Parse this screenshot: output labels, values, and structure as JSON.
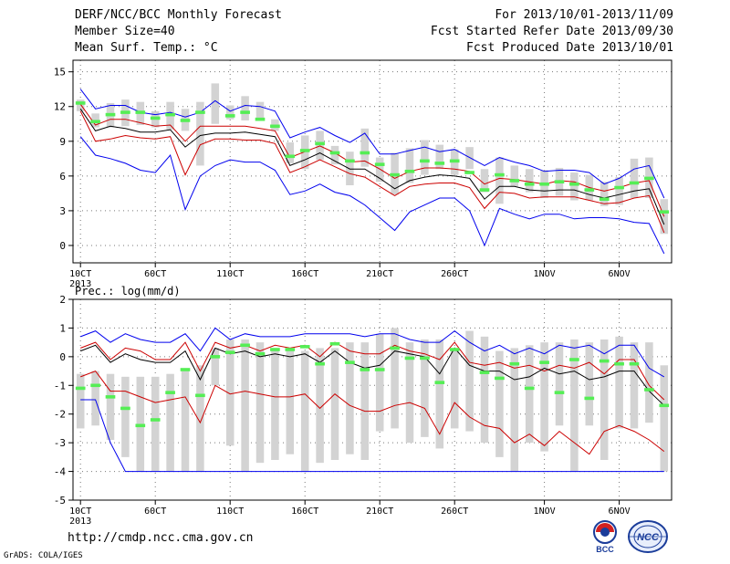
{
  "header": {
    "title": "DERF/NCC/BCC Monthly Forecast",
    "member_size": "Member Size=40",
    "variable": "Mean Surf. Temp.: °C",
    "period": "For 2013/10/01-2013/11/09",
    "fcst_started": "Fcst Started Refer Date 2013/09/30",
    "fcst_produced": "Fcst Produced Date 2013/10/01"
  },
  "footer": {
    "url": "http://cmdp.ncc.cma.gov.cn",
    "credit": "GrADS: COLA/IGES",
    "logo_bcc": "BCC",
    "logo_ncc": "NCC"
  },
  "colors": {
    "envelope_outer": "#0000ee",
    "envelope_inner": "#cc0000",
    "mean": "#000000",
    "box": "#d3d3d3",
    "observed": "#55ee55"
  },
  "chart_data": [
    {
      "type": "line",
      "title": "",
      "ylabel": "",
      "ylim": [
        -1.5,
        16
      ],
      "yticks": [
        0,
        3,
        6,
        9,
        12,
        15
      ],
      "xlim": [
        0.5,
        40.5
      ],
      "xticks": [
        {
          "day": 1,
          "label": "10CT"
        },
        {
          "day": 6,
          "label": "60CT"
        },
        {
          "day": 11,
          "label": "110CT"
        },
        {
          "day": 16,
          "label": "160CT"
        },
        {
          "day": 21,
          "label": "210CT"
        },
        {
          "day": 26,
          "label": "260CT"
        },
        {
          "day": 32,
          "label": "1NOV"
        },
        {
          "day": 37,
          "label": "6NOV"
        }
      ],
      "year_label": "2013",
      "box_low": [
        11.6,
        10.2,
        10.2,
        10.3,
        10.4,
        10.2,
        10.0,
        9.9,
        6.9,
        10.5,
        10.9,
        10.8,
        10.9,
        9.9,
        7.1,
        6.6,
        7.4,
        7.0,
        5.2,
        6.8,
        5.5,
        4.4,
        5.4,
        6.1,
        6.6,
        6.1,
        6.6,
        4.6,
        3.6,
        5.1,
        4.6,
        4.1,
        4.3,
        3.9,
        3.9,
        3.4,
        3.5,
        4.1,
        4.1,
        1.0
      ],
      "box_high": [
        12.6,
        11.4,
        12.3,
        12.6,
        12.4,
        11.6,
        12.4,
        11.8,
        12.4,
        14.0,
        12.1,
        12.9,
        12.4,
        10.9,
        8.9,
        9.5,
        9.9,
        8.6,
        8.1,
        10.1,
        7.6,
        8.0,
        8.4,
        9.1,
        8.7,
        8.3,
        8.5,
        6.6,
        7.6,
        6.9,
        6.6,
        6.5,
        6.7,
        6.3,
        6.1,
        5.5,
        5.9,
        7.5,
        7.6,
        4.0
      ],
      "observed": [
        12.3,
        10.7,
        11.3,
        11.5,
        11.5,
        11.0,
        11.3,
        10.8,
        11.5,
        null,
        11.2,
        11.5,
        10.9,
        10.3,
        7.7,
        8.2,
        8.8,
        8.0,
        7.3,
        8.0,
        7.0,
        6.1,
        6.4,
        7.3,
        7.1,
        7.3,
        6.3,
        4.8,
        6.1,
        5.6,
        5.3,
        5.3,
        5.5,
        5.3,
        4.8,
        4.0,
        5.0,
        5.4,
        5.8,
        2.9
      ],
      "series": [
        {
          "role": "max",
          "color": "#0000ee",
          "values": [
            13.5,
            11.8,
            12.1,
            12.1,
            11.5,
            11.3,
            11.5,
            11.1,
            11.5,
            12.5,
            11.6,
            12.1,
            12.0,
            11.6,
            9.3,
            9.8,
            10.2,
            9.5,
            8.9,
            9.7,
            7.9,
            7.9,
            8.2,
            8.5,
            8.1,
            8.3,
            7.6,
            6.9,
            7.6,
            7.2,
            6.9,
            6.4,
            6.5,
            6.5,
            6.3,
            5.3,
            5.8,
            6.6,
            6.9,
            4.1
          ]
        },
        {
          "role": "upper",
          "color": "#cc0000",
          "values": [
            12.2,
            10.4,
            10.9,
            10.9,
            10.6,
            10.3,
            10.4,
            9.0,
            10.3,
            10.3,
            10.3,
            10.3,
            10.1,
            9.9,
            7.6,
            8.1,
            8.6,
            8.0,
            7.2,
            7.3,
            6.6,
            5.8,
            6.4,
            6.7,
            6.7,
            6.6,
            6.4,
            5.3,
            5.8,
            5.7,
            5.5,
            5.3,
            5.6,
            5.5,
            5.0,
            4.7,
            5.0,
            5.4,
            5.6,
            2.5
          ]
        },
        {
          "role": "mean",
          "color": "#000000",
          "values": [
            11.8,
            9.9,
            10.3,
            10.1,
            9.8,
            9.8,
            10.0,
            8.5,
            9.5,
            9.7,
            9.7,
            9.8,
            9.6,
            9.4,
            6.9,
            7.4,
            8.0,
            7.3,
            6.6,
            6.6,
            5.8,
            4.9,
            5.6,
            5.9,
            6.1,
            6.0,
            5.8,
            4.0,
            5.1,
            5.1,
            4.8,
            4.7,
            4.8,
            4.8,
            4.4,
            4.1,
            4.4,
            4.7,
            4.9,
            1.8
          ]
        },
        {
          "role": "lower",
          "color": "#cc0000",
          "values": [
            11.6,
            9.0,
            9.2,
            9.5,
            9.3,
            9.2,
            9.4,
            6.1,
            8.7,
            9.2,
            9.2,
            9.1,
            9.1,
            8.8,
            6.3,
            6.8,
            7.4,
            6.8,
            6.2,
            5.9,
            5.1,
            4.3,
            5.1,
            5.3,
            5.4,
            5.4,
            5.0,
            3.2,
            4.6,
            4.5,
            4.1,
            4.2,
            4.2,
            4.2,
            3.9,
            3.6,
            3.7,
            4.1,
            4.3,
            1.1
          ]
        },
        {
          "role": "min",
          "color": "#0000ee",
          "values": [
            9.4,
            7.8,
            7.5,
            7.1,
            6.5,
            6.3,
            7.8,
            3.1,
            6.0,
            6.9,
            7.4,
            7.2,
            7.2,
            6.5,
            4.4,
            4.7,
            5.3,
            4.6,
            4.3,
            3.5,
            2.4,
            1.3,
            2.9,
            3.5,
            4.1,
            4.1,
            3.0,
            0.0,
            3.2,
            2.7,
            2.3,
            2.7,
            2.7,
            2.3,
            2.4,
            2.4,
            2.3,
            2.0,
            1.9,
            -0.7
          ]
        }
      ]
    },
    {
      "type": "line",
      "title": "",
      "ylabel": "Prec.: log(mm/d)",
      "ylim": [
        -5,
        2
      ],
      "yticks": [
        -5,
        -4,
        -3,
        -2,
        -1,
        0,
        1,
        2
      ],
      "xlim": [
        0.5,
        40.5
      ],
      "xticks": [
        {
          "day": 1,
          "label": "10CT"
        },
        {
          "day": 6,
          "label": "60CT"
        },
        {
          "day": 11,
          "label": "110CT"
        },
        {
          "day": 16,
          "label": "160CT"
        },
        {
          "day": 21,
          "label": "210CT"
        },
        {
          "day": 26,
          "label": "260CT"
        },
        {
          "day": 32,
          "label": "1NOV"
        },
        {
          "day": 37,
          "label": "6NOV"
        }
      ],
      "year_label": "2013",
      "box_low": [
        -2.5,
        -2.4,
        -2.9,
        -3.5,
        -4.0,
        -4.0,
        -4.0,
        -4.0,
        -4.0,
        -1.0,
        -3.1,
        -4.0,
        -3.7,
        -3.6,
        -3.4,
        -4.0,
        -3.7,
        -3.6,
        -3.4,
        -3.6,
        -2.6,
        -2.5,
        -3.0,
        -2.8,
        -3.2,
        -2.5,
        -2.6,
        -3.0,
        -3.5,
        -4.0,
        -3.0,
        -3.3,
        -2.4,
        -4.0,
        -2.4,
        -3.6,
        -2.5,
        -2.5,
        -2.3,
        -4.0
      ],
      "box_high": [
        -0.6,
        -0.5,
        -0.6,
        -0.7,
        -0.7,
        -0.7,
        -0.6,
        -0.5,
        -0.3,
        0.3,
        0.6,
        0.6,
        0.5,
        0.2,
        0.2,
        0.2,
        0.3,
        0.3,
        0.5,
        0.5,
        0.8,
        1.0,
        0.5,
        0.6,
        0.6,
        0.3,
        0.9,
        0.7,
        0.2,
        0.3,
        0.4,
        0.5,
        0.5,
        0.6,
        0.5,
        0.6,
        0.7,
        0.5,
        0.5,
        -0.3
      ],
      "observed": [
        -1.1,
        -1.0,
        -1.4,
        -1.8,
        -2.4,
        -2.2,
        -1.25,
        -0.45,
        -1.35,
        0.0,
        0.15,
        0.4,
        0.1,
        0.25,
        0.25,
        0.35,
        -0.25,
        0.45,
        -0.2,
        -0.45,
        -0.45,
        0.3,
        -0.05,
        -0.05,
        -0.9,
        0.25,
        null,
        -0.55,
        -0.75,
        -0.25,
        -1.1,
        -0.2,
        -1.25,
        -0.1,
        -1.45,
        -0.15,
        -0.25,
        -0.25,
        -1.15,
        -1.7
      ],
      "series": [
        {
          "role": "max",
          "color": "#0000ee",
          "values": [
            0.7,
            0.9,
            0.5,
            0.8,
            0.6,
            0.5,
            0.5,
            0.8,
            0.2,
            1.0,
            0.6,
            0.8,
            0.7,
            0.7,
            0.7,
            0.8,
            0.8,
            0.8,
            0.8,
            0.7,
            0.8,
            0.8,
            0.6,
            0.5,
            0.5,
            0.9,
            0.5,
            0.2,
            0.4,
            0.1,
            0.3,
            0.1,
            0.4,
            0.3,
            0.4,
            0.1,
            0.4,
            0.4,
            -0.4,
            -0.7
          ]
        },
        {
          "role": "upper",
          "color": "#cc0000",
          "values": [
            0.3,
            0.5,
            -0.1,
            0.3,
            0.2,
            -0.1,
            -0.1,
            0.5,
            -0.5,
            0.5,
            0.3,
            0.4,
            0.2,
            0.4,
            0.3,
            0.4,
            0.0,
            0.5,
            0.2,
            0.1,
            0.1,
            0.4,
            0.2,
            0.1,
            -0.1,
            0.5,
            -0.2,
            -0.3,
            -0.2,
            -0.4,
            -0.3,
            -0.5,
            -0.3,
            -0.4,
            -0.2,
            -0.6,
            -0.1,
            -0.1,
            -1.0,
            -1.5
          ]
        },
        {
          "role": "mean",
          "color": "#000000",
          "values": [
            0.2,
            0.4,
            -0.2,
            0.1,
            -0.1,
            -0.2,
            -0.2,
            0.2,
            -0.8,
            0.3,
            0.1,
            0.2,
            0.0,
            0.1,
            0.0,
            0.1,
            -0.2,
            0.2,
            -0.2,
            -0.4,
            -0.3,
            0.2,
            0.1,
            0.0,
            -0.6,
            0.3,
            -0.3,
            -0.5,
            -0.5,
            -0.8,
            -0.7,
            -0.4,
            -0.6,
            -0.5,
            -0.8,
            -0.7,
            -0.5,
            -0.5,
            -1.2,
            -1.7
          ]
        },
        {
          "role": "lower",
          "color": "#cc0000",
          "values": [
            -0.7,
            -0.5,
            -1.2,
            -1.2,
            -1.4,
            -1.6,
            -1.5,
            -1.4,
            -2.3,
            -1.0,
            -1.3,
            -1.2,
            -1.3,
            -1.4,
            -1.4,
            -1.3,
            -1.8,
            -1.3,
            -1.7,
            -1.9,
            -1.9,
            -1.7,
            -1.6,
            -1.8,
            -2.7,
            -1.6,
            -2.1,
            -2.4,
            -2.5,
            -3.0,
            -2.7,
            -3.1,
            -2.6,
            -3.0,
            -3.4,
            -2.6,
            -2.4,
            -2.6,
            -2.9,
            -3.3
          ]
        },
        {
          "role": "min",
          "color": "#0000ee",
          "values": [
            -1.5,
            -1.5,
            -3.0,
            -4.0,
            -4.0,
            -4.0,
            -4.0,
            -4.0,
            -4.0,
            -4.0,
            -4.0,
            -4.0,
            -4.0,
            -4.0,
            -4.0,
            -4.0,
            -4.0,
            -4.0,
            -4.0,
            -4.0,
            -4.0,
            -4.0,
            -4.0,
            -4.0,
            -4.0,
            -4.0,
            -4.0,
            -4.0,
            -4.0,
            -4.0,
            -4.0,
            -4.0,
            -4.0,
            -4.0,
            -4.0,
            -4.0,
            -4.0,
            -4.0,
            -4.0,
            -4.0
          ]
        }
      ]
    }
  ]
}
